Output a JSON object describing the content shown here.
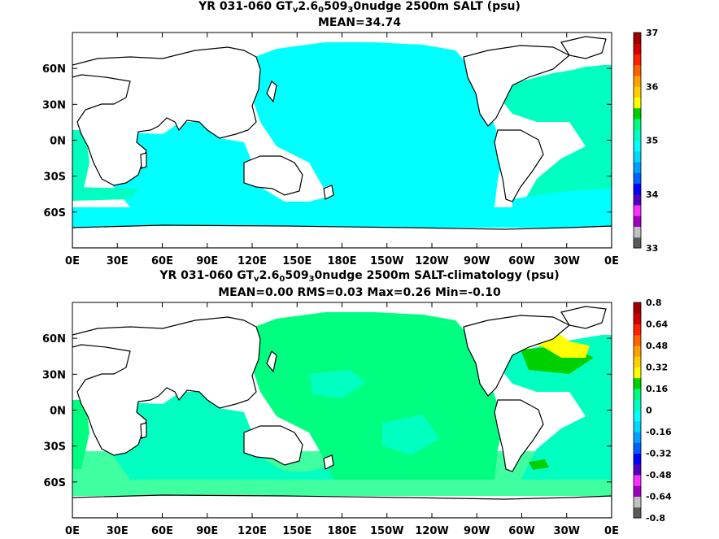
{
  "chart_data": [
    {
      "type": "heatmap",
      "title_parts": [
        "YR 031-060 GT",
        "v",
        "2.6",
        "0",
        "509",
        "3",
        "0nudge 2500m SALT (psu)"
      ],
      "subtitle": "MEAN=34.74",
      "x_ticks": [
        "0E",
        "30E",
        "60E",
        "90E",
        "120E",
        "150E",
        "180E",
        "150W",
        "120W",
        "90W",
        "60W",
        "30W",
        "0E"
      ],
      "y_ticks": [
        "60N",
        "30N",
        "0N",
        "30S",
        "60S"
      ],
      "colorbar": {
        "ticks": [
          "37",
          "36",
          "35",
          "34",
          "33"
        ],
        "levels": [
          33,
          33.2,
          33.4,
          33.6,
          33.8,
          34,
          34.2,
          34.4,
          34.6,
          34.8,
          35,
          35.2,
          35.4,
          35.6,
          35.8,
          36,
          36.2,
          36.4,
          36.6,
          36.8,
          37
        ],
        "colors": [
          "#5a5a5a",
          "#c0c0c0",
          "#a000c0",
          "#ff30ff",
          "#5000c0",
          "#0000ff",
          "#0060ff",
          "#00a0ff",
          "#00d8ff",
          "#00ffff",
          "#00ffc0",
          "#00ff80",
          "#00d000",
          "#ffff00",
          "#ffd000",
          "#ffa000",
          "#ff6000",
          "#ff2000",
          "#d00000",
          "#a00000"
        ]
      },
      "field_summary": {
        "global_mean": 34.74,
        "pacific_indian_deep": "34.6-34.8",
        "atlantic_north": "34.8-35.0",
        "southern_ocean_band": "34.6-34.8"
      }
    },
    {
      "type": "heatmap",
      "title_parts": [
        "YR 031-060 GT",
        "v",
        "2.6",
        "0",
        "509",
        "3",
        "0nudge 2500m SALT-climatology (psu)"
      ],
      "subtitle": "MEAN=0.00   RMS=0.03   Max=0.26   Min=-0.10",
      "x_ticks": [
        "0E",
        "30E",
        "60E",
        "90E",
        "120E",
        "150E",
        "180E",
        "150W",
        "120W",
        "90W",
        "60W",
        "30W",
        "0E"
      ],
      "y_ticks": [
        "60N",
        "30N",
        "0N",
        "30S",
        "60S"
      ],
      "colorbar": {
        "ticks": [
          "0.8",
          "0.64",
          "0.48",
          "0.32",
          "0.16",
          "0",
          "-0.16",
          "-0.32",
          "-0.48",
          "-0.64",
          "-0.8"
        ],
        "levels": [
          -0.8,
          -0.72,
          -0.64,
          -0.56,
          -0.48,
          -0.4,
          -0.32,
          -0.24,
          -0.16,
          -0.08,
          0,
          0.08,
          0.16,
          0.24,
          0.32,
          0.4,
          0.48,
          0.56,
          0.64,
          0.72,
          0.8
        ],
        "colors": [
          "#5a5a5a",
          "#c0c0c0",
          "#a000c0",
          "#ff30ff",
          "#5000c0",
          "#0000ff",
          "#0060ff",
          "#00a0ff",
          "#00d8ff",
          "#00ffff",
          "#00ffc0",
          "#00ff80",
          "#00d000",
          "#ffff00",
          "#ffd000",
          "#ffa000",
          "#ff6000",
          "#ff2000",
          "#d00000",
          "#a00000"
        ]
      },
      "field_summary": {
        "mean": 0.0,
        "rms": 0.03,
        "max": 0.26,
        "min": -0.1,
        "north_atlantic_max": "0.16-0.32"
      }
    }
  ]
}
